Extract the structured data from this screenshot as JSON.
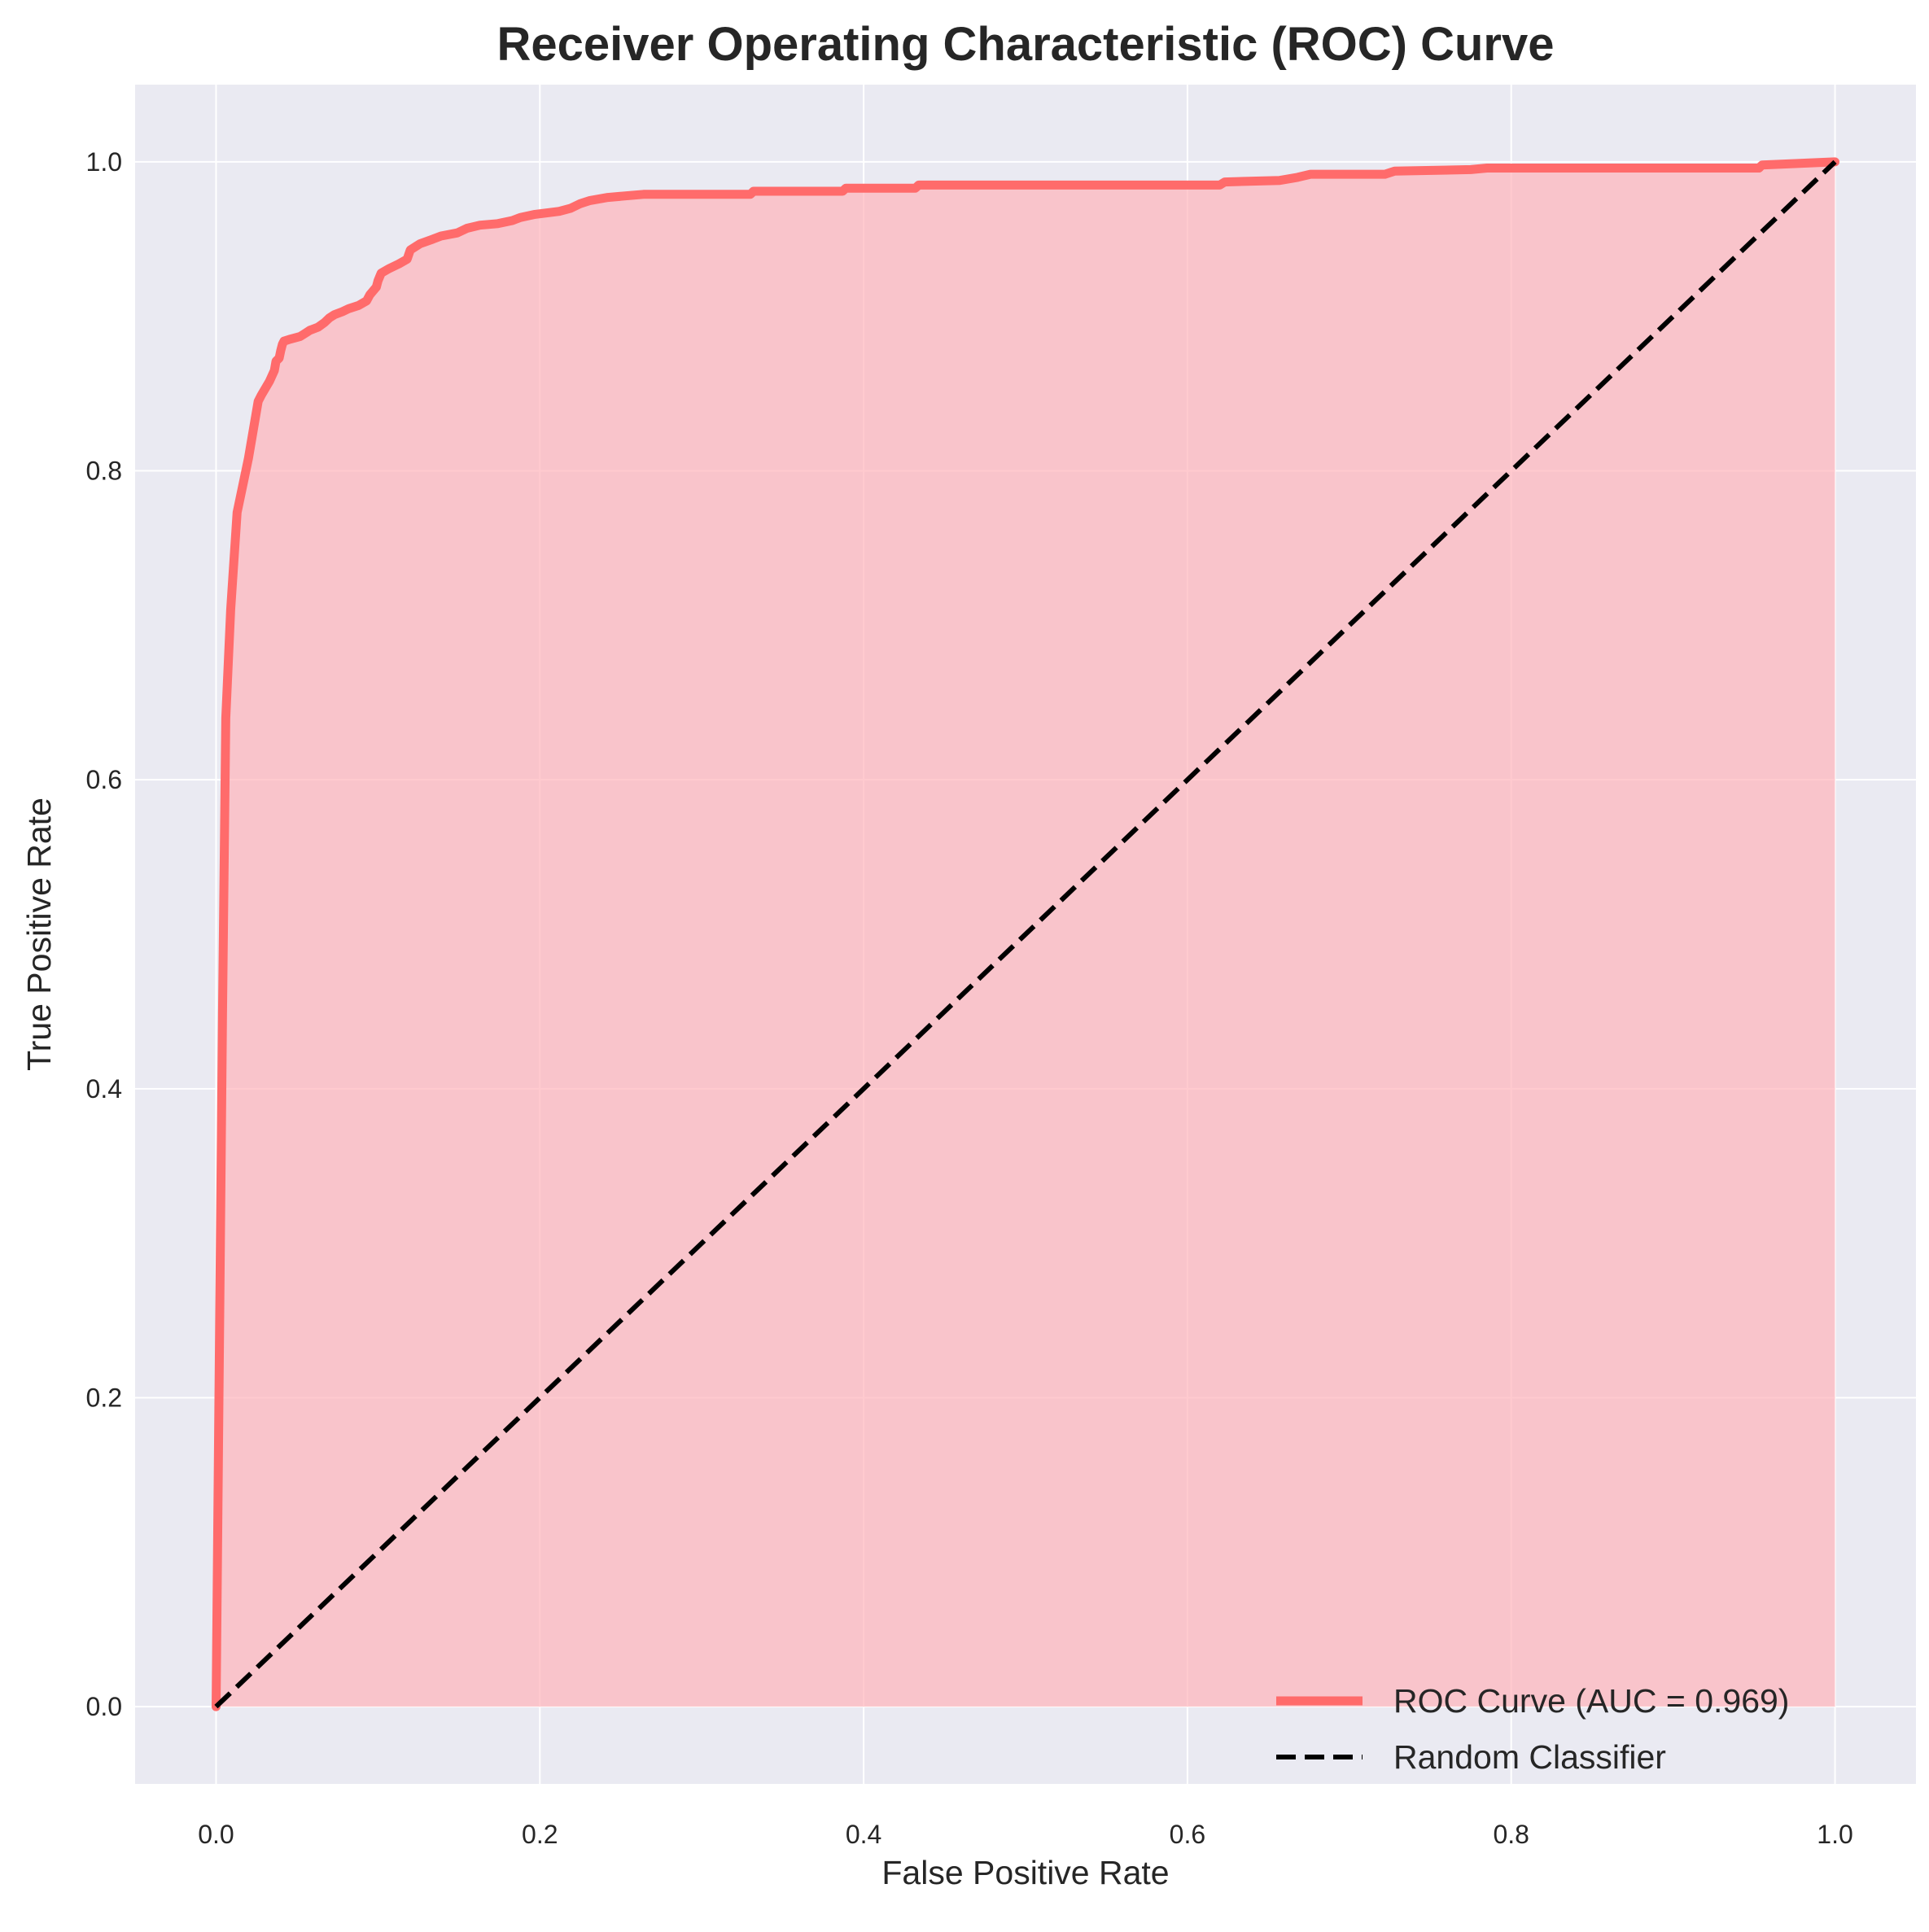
{
  "chart_data": {
    "type": "line",
    "title": "Receiver Operating Characteristic (ROC) Curve",
    "xlabel": "False Positive Rate",
    "ylabel": "True Positive Rate",
    "xlim": [
      -0.05,
      1.05
    ],
    "ylim": [
      -0.05,
      1.05
    ],
    "x_ticks": [
      "0.0",
      "0.2",
      "0.4",
      "0.6",
      "0.8",
      "1.0"
    ],
    "y_ticks": [
      "0.0",
      "0.2",
      "0.4",
      "0.6",
      "0.8",
      "1.0"
    ],
    "grid": true,
    "legend_position": "lower-right",
    "colors": {
      "background": "#eaeaf2",
      "grid": "#ffffff",
      "roc_line": "#ff6b6b",
      "roc_fill": "#ffb3ba",
      "baseline": "#000000"
    },
    "series": [
      {
        "name": "ROC Curve (AUC = 0.969)",
        "style": "solid",
        "fill_under": true,
        "x": [
          0.0,
          0.004,
          0.006,
          0.009,
          0.013,
          0.02,
          0.026,
          0.028,
          0.033,
          0.036,
          0.037,
          0.039,
          0.04,
          0.041,
          0.042,
          0.045,
          0.052,
          0.055,
          0.058,
          0.063,
          0.067,
          0.07,
          0.073,
          0.078,
          0.082,
          0.088,
          0.093,
          0.095,
          0.099,
          0.1,
          0.102,
          0.107,
          0.113,
          0.118,
          0.12,
          0.126,
          0.134,
          0.139,
          0.149,
          0.155,
          0.163,
          0.174,
          0.183,
          0.188,
          0.197,
          0.212,
          0.219,
          0.225,
          0.231,
          0.242,
          0.264,
          0.33,
          0.332,
          0.387,
          0.389,
          0.432,
          0.434,
          0.62,
          0.623,
          0.657,
          0.668,
          0.676,
          0.722,
          0.728,
          0.775,
          0.785,
          0.953,
          0.955,
          1.0
        ],
        "y": [
          0.0,
          0.45,
          0.64,
          0.71,
          0.773,
          0.808,
          0.845,
          0.849,
          0.858,
          0.865,
          0.871,
          0.873,
          0.878,
          0.882,
          0.884,
          0.885,
          0.887,
          0.889,
          0.891,
          0.893,
          0.896,
          0.899,
          0.901,
          0.903,
          0.905,
          0.907,
          0.91,
          0.914,
          0.919,
          0.923,
          0.928,
          0.931,
          0.934,
          0.937,
          0.943,
          0.947,
          0.95,
          0.952,
          0.954,
          0.957,
          0.959,
          0.96,
          0.962,
          0.964,
          0.966,
          0.968,
          0.97,
          0.973,
          0.975,
          0.977,
          0.979,
          0.979,
          0.981,
          0.981,
          0.983,
          0.983,
          0.985,
          0.985,
          0.987,
          0.988,
          0.99,
          0.992,
          0.992,
          0.994,
          0.995,
          0.996,
          0.996,
          0.998,
          1.0
        ]
      },
      {
        "name": "Random Classifier",
        "style": "dashed",
        "x": [
          0.0,
          1.0
        ],
        "y": [
          0.0,
          1.0
        ]
      }
    ]
  }
}
